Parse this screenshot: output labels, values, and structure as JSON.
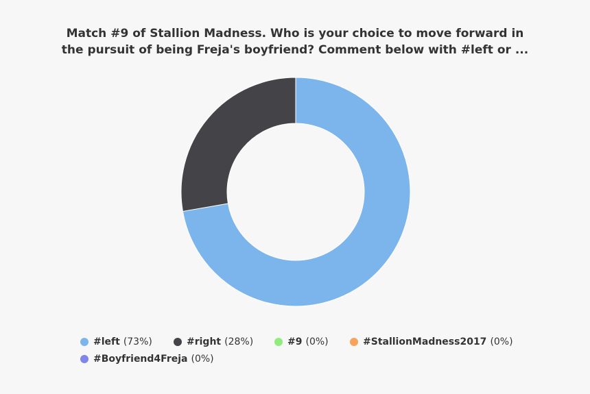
{
  "chart_data": {
    "type": "donut",
    "title": [
      "Match #9 of Stallion Madness. Who is your choice to move forward in",
      "the pursuit of being Freja's boyfriend? Comment below with #left or ..."
    ],
    "categories": [
      "#left",
      "#right",
      "#9",
      "#StallionMadness2017",
      "#Boyfriend4Freja"
    ],
    "values": [
      73,
      28,
      0,
      0,
      0
    ],
    "value_labels": [
      "(73%)",
      "(28%)",
      "(0%)",
      "(0%)",
      "(0%)"
    ],
    "colors": [
      "#7cb5ec",
      "#434348",
      "#90ed7d",
      "#f7a35c",
      "#8085e9"
    ]
  }
}
